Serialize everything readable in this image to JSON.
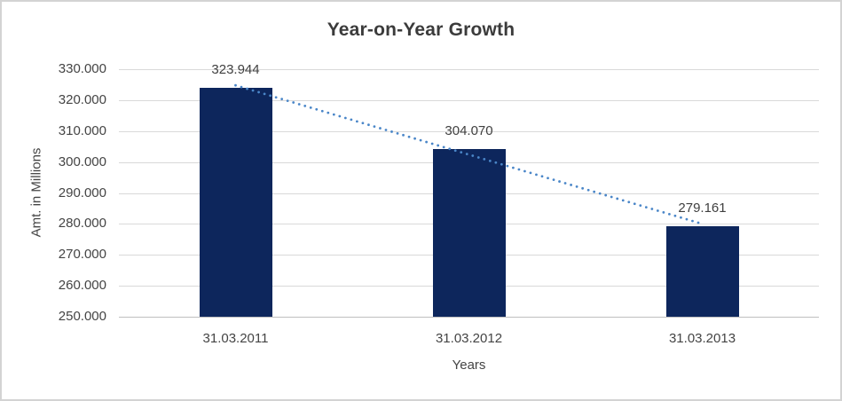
{
  "chart_data": {
    "type": "bar",
    "title": "Year-on-Year Growth",
    "xlabel": "Years",
    "ylabel": "Amt. in Millions",
    "categories": [
      "31.03.2011",
      "31.03.2012",
      "31.03.2013"
    ],
    "values": [
      323.944,
      304.07,
      279.161
    ],
    "value_labels": [
      "323.944",
      "304.070",
      "279.161"
    ],
    "ylim": [
      250,
      330
    ],
    "y_tick_step": 10,
    "y_tick_labels": [
      "330.000",
      "320.000",
      "310.000",
      "300.000",
      "290.000",
      "280.000",
      "270.000",
      "260.000",
      "250.000"
    ],
    "grid": true,
    "legend": "none",
    "trendline": {
      "style": "dotted",
      "color": "#4a86c8",
      "fit": "linear"
    },
    "colors": {
      "bar": "#0d265c",
      "gridline": "#d9d9d9",
      "axis_line": "#bfbfbf",
      "text": "#404040",
      "title_text": "#3b3b3b",
      "border": "#d3d3d3"
    }
  }
}
